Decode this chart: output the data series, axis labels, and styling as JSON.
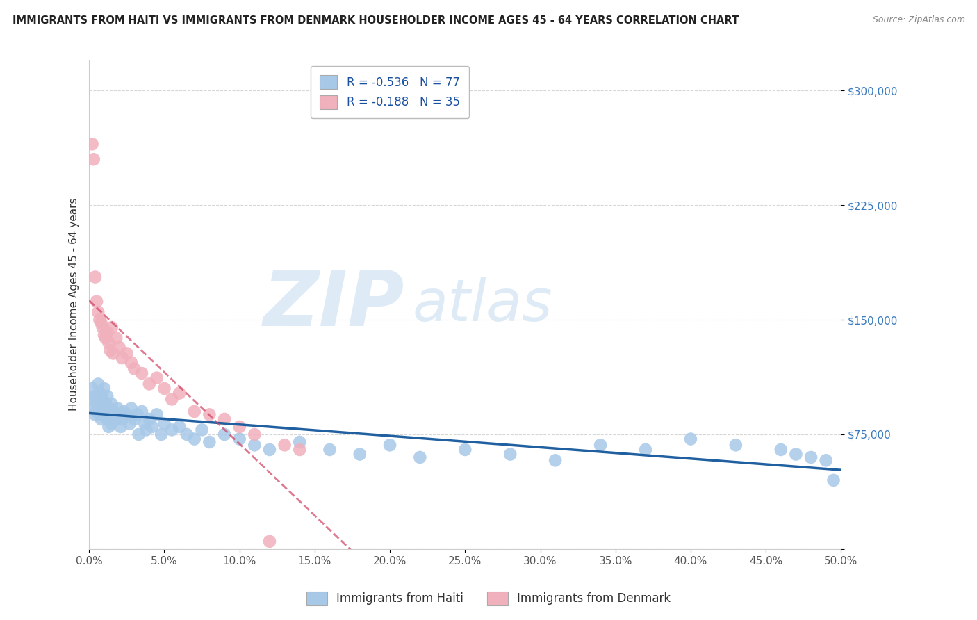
{
  "title": "IMMIGRANTS FROM HAITI VS IMMIGRANTS FROM DENMARK HOUSEHOLDER INCOME AGES 45 - 64 YEARS CORRELATION CHART",
  "source": "Source: ZipAtlas.com",
  "ylabel": "Householder Income Ages 45 - 64 years",
  "xlim": [
    0.0,
    0.5
  ],
  "ylim": [
    0,
    320000
  ],
  "xticks": [
    0.0,
    0.05,
    0.1,
    0.15,
    0.2,
    0.25,
    0.3,
    0.35,
    0.4,
    0.45,
    0.5
  ],
  "xticklabels": [
    "0.0%",
    "5.0%",
    "10.0%",
    "15.0%",
    "20.0%",
    "25.0%",
    "30.0%",
    "35.0%",
    "40.0%",
    "45.0%",
    "50.0%"
  ],
  "yticks": [
    0,
    75000,
    150000,
    225000,
    300000
  ],
  "yticklabels": [
    "",
    "$75,000",
    "$150,000",
    "$225,000",
    "$300,000"
  ],
  "haiti_color": "#a8c8e8",
  "haiti_line_color": "#2060a0",
  "denmark_color": "#f0b0bc",
  "denmark_line_color": "#d04060",
  "denmark_line_style": "--",
  "haiti_R": -0.536,
  "haiti_N": 77,
  "denmark_R": -0.188,
  "denmark_N": 35,
  "haiti_x": [
    0.002,
    0.003,
    0.003,
    0.004,
    0.004,
    0.005,
    0.005,
    0.006,
    0.006,
    0.007,
    0.007,
    0.007,
    0.008,
    0.008,
    0.008,
    0.009,
    0.009,
    0.01,
    0.01,
    0.011,
    0.011,
    0.012,
    0.012,
    0.013,
    0.013,
    0.014,
    0.015,
    0.015,
    0.016,
    0.017,
    0.018,
    0.019,
    0.02,
    0.021,
    0.022,
    0.023,
    0.025,
    0.027,
    0.028,
    0.03,
    0.032,
    0.033,
    0.035,
    0.037,
    0.038,
    0.04,
    0.042,
    0.045,
    0.048,
    0.05,
    0.055,
    0.06,
    0.065,
    0.07,
    0.075,
    0.08,
    0.09,
    0.1,
    0.11,
    0.12,
    0.14,
    0.16,
    0.18,
    0.2,
    0.22,
    0.25,
    0.28,
    0.31,
    0.34,
    0.37,
    0.4,
    0.43,
    0.46,
    0.47,
    0.48,
    0.49,
    0.495
  ],
  "haiti_y": [
    105000,
    98000,
    92000,
    100000,
    88000,
    95000,
    90000,
    108000,
    96000,
    102000,
    88000,
    95000,
    100000,
    92000,
    85000,
    98000,
    88000,
    105000,
    90000,
    95000,
    88000,
    100000,
    85000,
    92000,
    80000,
    88000,
    95000,
    82000,
    90000,
    88000,
    85000,
    92000,
    88000,
    80000,
    85000,
    90000,
    88000,
    82000,
    92000,
    85000,
    88000,
    75000,
    90000,
    82000,
    78000,
    85000,
    80000,
    88000,
    75000,
    82000,
    78000,
    80000,
    75000,
    72000,
    78000,
    70000,
    75000,
    72000,
    68000,
    65000,
    70000,
    65000,
    62000,
    68000,
    60000,
    65000,
    62000,
    58000,
    68000,
    65000,
    72000,
    68000,
    65000,
    62000,
    60000,
    58000,
    45000
  ],
  "denmark_x": [
    0.002,
    0.003,
    0.004,
    0.005,
    0.006,
    0.007,
    0.008,
    0.009,
    0.01,
    0.011,
    0.012,
    0.013,
    0.014,
    0.015,
    0.016,
    0.018,
    0.02,
    0.022,
    0.025,
    0.028,
    0.03,
    0.035,
    0.04,
    0.045,
    0.05,
    0.055,
    0.06,
    0.07,
    0.08,
    0.09,
    0.1,
    0.11,
    0.12,
    0.13,
    0.14
  ],
  "denmark_y": [
    265000,
    255000,
    178000,
    162000,
    155000,
    150000,
    148000,
    145000,
    140000,
    138000,
    142000,
    135000,
    130000,
    145000,
    128000,
    138000,
    132000,
    125000,
    128000,
    122000,
    118000,
    115000,
    108000,
    112000,
    105000,
    98000,
    102000,
    90000,
    88000,
    85000,
    80000,
    75000,
    5000,
    68000,
    65000
  ]
}
